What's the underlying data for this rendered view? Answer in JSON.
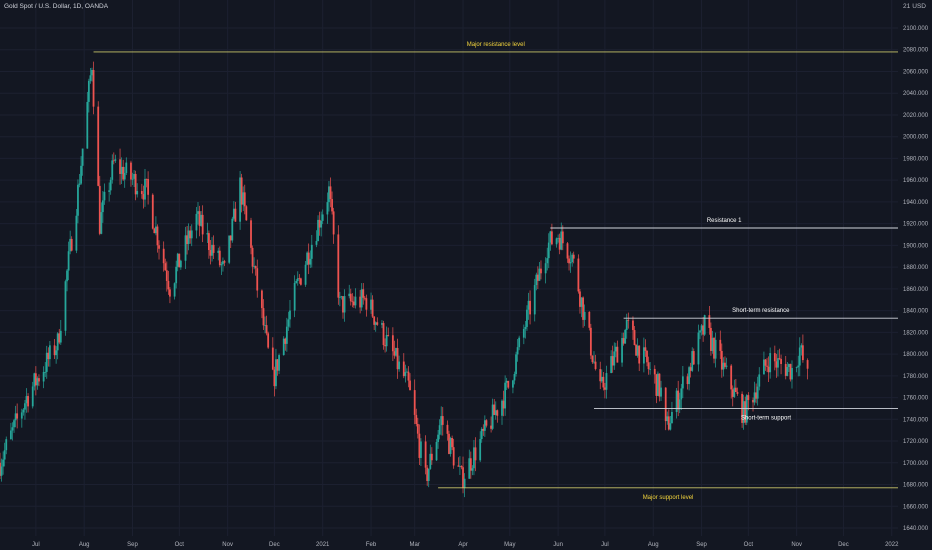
{
  "header": {
    "symbol_title": "Gold Spot / U.S. Dollar, 1D, OANDA",
    "currency_value": "21",
    "currency_unit": "USD"
  },
  "colors": {
    "background": "#131722",
    "up": "#26a69a",
    "down": "#ef5350",
    "major_line": "#c9c46a",
    "minor_line": "#d1d4dc",
    "label_yellow": "#f5d63d",
    "label_white": "#ffffff"
  },
  "chart_data": {
    "type": "candlestick",
    "y_axis_side": "right",
    "ylim": [
      1630,
      2120
    ],
    "y_ticks": [
      1640,
      1660,
      1680,
      1700,
      1720,
      1740,
      1760,
      1780,
      1800,
      1820,
      1840,
      1860,
      1880,
      1900,
      1920,
      1940,
      1960,
      1980,
      2000,
      2020,
      2040,
      2060,
      2080,
      2100
    ],
    "y_tick_labels": [
      "1640.000",
      "1660.000",
      "1680.000",
      "1700.000",
      "1720.000",
      "1740.000",
      "1760.000",
      "1780.000",
      "1800.000",
      "1820.000",
      "1840.000",
      "1860.000",
      "1880.000",
      "1900.000",
      "1920.000",
      "1940.000",
      "1960.000",
      "1980.000",
      "2000.000",
      "2020.000",
      "2040.000",
      "2060.000",
      "2080.000",
      "2100.000"
    ],
    "x_range": [
      "2020-06-08",
      "2022-01-05"
    ],
    "x_ticks": [
      {
        "label": "Jul",
        "date": "2020-07-01"
      },
      {
        "label": "Aug",
        "date": "2020-08-01"
      },
      {
        "label": "Sep",
        "date": "2020-09-01"
      },
      {
        "label": "Oct",
        "date": "2020-10-01"
      },
      {
        "label": "Nov",
        "date": "2020-11-01"
      },
      {
        "label": "Dec",
        "date": "2020-12-01"
      },
      {
        "label": "2021",
        "date": "2021-01-01"
      },
      {
        "label": "Feb",
        "date": "2021-02-01"
      },
      {
        "label": "Mar",
        "date": "2021-03-01"
      },
      {
        "label": "Apr",
        "date": "2021-04-01"
      },
      {
        "label": "May",
        "date": "2021-05-01"
      },
      {
        "label": "Jun",
        "date": "2021-06-01"
      },
      {
        "label": "Jul",
        "date": "2021-07-01"
      },
      {
        "label": "Aug",
        "date": "2021-08-01"
      },
      {
        "label": "Sep",
        "date": "2021-09-01"
      },
      {
        "label": "Oct",
        "date": "2021-10-01"
      },
      {
        "label": "Nov",
        "date": "2021-11-01"
      },
      {
        "label": "Dec",
        "date": "2021-12-01"
      },
      {
        "label": "2022",
        "date": "2022-01-01"
      }
    ],
    "price_path": [
      {
        "date": "2020-06-08",
        "price": 1700
      },
      {
        "date": "2020-06-25",
        "price": 1760
      },
      {
        "date": "2020-07-15",
        "price": 1810
      },
      {
        "date": "2020-07-28",
        "price": 1950
      },
      {
        "date": "2020-08-06",
        "price": 2068
      },
      {
        "date": "2020-08-11",
        "price": 1920
      },
      {
        "date": "2020-08-20",
        "price": 1975
      },
      {
        "date": "2020-09-10",
        "price": 1950
      },
      {
        "date": "2020-09-25",
        "price": 1862
      },
      {
        "date": "2020-10-12",
        "price": 1925
      },
      {
        "date": "2020-10-30",
        "price": 1875
      },
      {
        "date": "2020-11-09",
        "price": 1955
      },
      {
        "date": "2020-11-30",
        "price": 1775
      },
      {
        "date": "2020-12-15",
        "price": 1860
      },
      {
        "date": "2021-01-05",
        "price": 1950
      },
      {
        "date": "2021-01-12",
        "price": 1845
      },
      {
        "date": "2021-01-29",
        "price": 1850
      },
      {
        "date": "2021-02-25",
        "price": 1770
      },
      {
        "date": "2021-03-08",
        "price": 1685
      },
      {
        "date": "2021-03-18",
        "price": 1740
      },
      {
        "date": "2021-03-31",
        "price": 1685
      },
      {
        "date": "2021-04-30",
        "price": 1770
      },
      {
        "date": "2021-05-25",
        "price": 1900
      },
      {
        "date": "2021-06-01",
        "price": 1910
      },
      {
        "date": "2021-06-10",
        "price": 1890
      },
      {
        "date": "2021-06-28",
        "price": 1765
      },
      {
        "date": "2021-07-15",
        "price": 1825
      },
      {
        "date": "2021-08-06",
        "price": 1765
      },
      {
        "date": "2021-08-09",
        "price": 1730
      },
      {
        "date": "2021-09-03",
        "price": 1825
      },
      {
        "date": "2021-09-28",
        "price": 1745
      },
      {
        "date": "2021-10-14",
        "price": 1795
      },
      {
        "date": "2021-10-30",
        "price": 1785
      },
      {
        "date": "2021-11-03",
        "price": 1805
      },
      {
        "date": "2021-11-08",
        "price": 1778
      }
    ],
    "levels": [
      {
        "name": "major-resistance",
        "label": "Major resistance level",
        "price": 2078,
        "from": "2020-08-07",
        "to": "2022-01-05",
        "color": "#c9c46a",
        "label_color": "#f5d63d",
        "label_position": "above"
      },
      {
        "name": "resistance-1",
        "label": "Resistance 1",
        "price": 1916,
        "from": "2021-05-27",
        "to": "2022-01-05",
        "color": "#d1d4dc",
        "label_color": "#ffffff",
        "label_position": "above"
      },
      {
        "name": "short-term-resistance",
        "label": "Short-term resistance",
        "price": 1833,
        "from": "2021-07-13",
        "to": "2022-01-05",
        "color": "#d1d4dc",
        "label_color": "#ffffff",
        "label_position": "above"
      },
      {
        "name": "short-term-support",
        "label": "Short-term support",
        "price": 1750,
        "from": "2021-06-24",
        "to": "2022-01-05",
        "color": "#d1d4dc",
        "label_color": "#ffffff",
        "label_position": "below"
      },
      {
        "name": "major-support",
        "label": "Major support level",
        "price": 1677,
        "from": "2021-03-16",
        "to": "2022-01-05",
        "color": "#c9c46a",
        "label_color": "#f5d63d",
        "label_position": "below"
      }
    ]
  }
}
